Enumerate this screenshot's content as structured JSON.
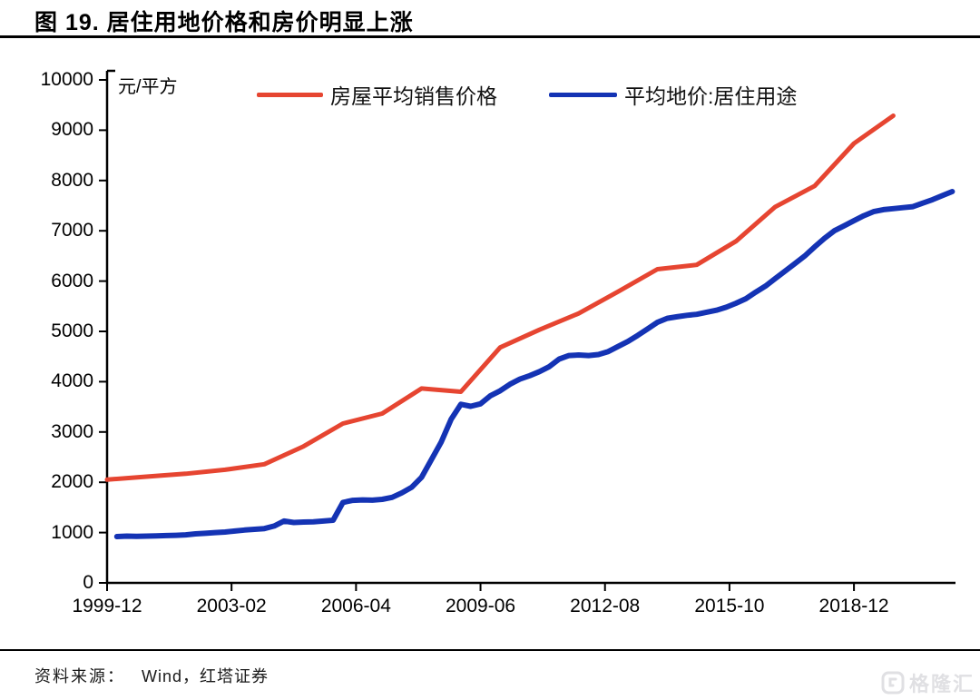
{
  "title": "图 19. 居住用地价格和房价明显上涨",
  "footer": {
    "source_label": "资料来源：",
    "source_value": "Wind，红塔证券"
  },
  "watermark": {
    "text": "格隆汇"
  },
  "chart_data": {
    "type": "line",
    "title": "图 19. 居住用地价格和房价明显上涨",
    "unit_label": "元/平方",
    "ylim": [
      0,
      10000
    ],
    "y_ticks": [
      0,
      1000,
      2000,
      3000,
      4000,
      5000,
      6000,
      7000,
      8000,
      9000,
      10000
    ],
    "x_range_months": [
      0,
      259
    ],
    "x_ticks": [
      {
        "label": "1999-12",
        "month": 0
      },
      {
        "label": "2003-02",
        "month": 38
      },
      {
        "label": "2006-04",
        "month": 76
      },
      {
        "label": "2009-06",
        "month": 114
      },
      {
        "label": "2012-08",
        "month": 152
      },
      {
        "label": "2015-10",
        "month": 190
      },
      {
        "label": "2018-12",
        "month": 228
      }
    ],
    "grid": false,
    "legend_position": "top",
    "series": [
      {
        "name": "房屋平均销售价格",
        "color": "#e64531",
        "stroke_width": 5,
        "x_months": [
          0,
          12,
          24,
          36,
          48,
          60,
          72,
          84,
          96,
          108,
          120,
          132,
          144,
          156,
          168,
          180,
          192,
          204,
          216,
          228,
          240
        ],
        "values": [
          2053,
          2112,
          2170,
          2250,
          2359,
          2714,
          3168,
          3367,
          3864,
          3800,
          4681,
          5032,
          5357,
          5791,
          6237,
          6323,
          6793,
          7476,
          7892,
          8737,
          9287
        ]
      },
      {
        "name": "平均地价:居住用途",
        "color": "#1433b4",
        "stroke_width": 6,
        "x_months": [
          3,
          6,
          9,
          12,
          15,
          18,
          21,
          24,
          27,
          30,
          33,
          36,
          39,
          42,
          45,
          48,
          51,
          54,
          57,
          60,
          63,
          66,
          69,
          72,
          75,
          78,
          81,
          84,
          87,
          90,
          93,
          96,
          99,
          102,
          105,
          108,
          111,
          114,
          117,
          120,
          123,
          126,
          129,
          132,
          135,
          138,
          141,
          144,
          147,
          150,
          153,
          156,
          159,
          162,
          165,
          168,
          171,
          174,
          177,
          180,
          183,
          186,
          189,
          192,
          195,
          198,
          201,
          204,
          207,
          210,
          213,
          216,
          219,
          222,
          225,
          228,
          231,
          234,
          237,
          240,
          243,
          246,
          249,
          252,
          255,
          258
        ],
        "values": [
          920,
          930,
          925,
          930,
          935,
          940,
          945,
          955,
          975,
          985,
          1000,
          1010,
          1030,
          1050,
          1065,
          1080,
          1130,
          1230,
          1200,
          1210,
          1215,
          1230,
          1245,
          1600,
          1640,
          1650,
          1645,
          1660,
          1700,
          1790,
          1900,
          2100,
          2450,
          2800,
          3250,
          3550,
          3510,
          3560,
          3720,
          3820,
          3950,
          4050,
          4120,
          4200,
          4300,
          4450,
          4520,
          4530,
          4520,
          4540,
          4600,
          4700,
          4800,
          4920,
          5050,
          5180,
          5260,
          5290,
          5320,
          5340,
          5380,
          5420,
          5480,
          5560,
          5650,
          5780,
          5900,
          6050,
          6200,
          6350,
          6500,
          6680,
          6850,
          7000,
          7100,
          7200,
          7300,
          7380,
          7420,
          7440,
          7460,
          7480,
          7550,
          7620,
          7700,
          7780
        ]
      }
    ]
  }
}
